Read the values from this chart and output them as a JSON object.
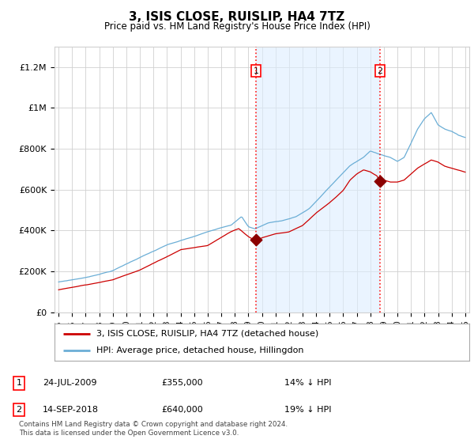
{
  "title": "3, ISIS CLOSE, RUISLIP, HA4 7TZ",
  "subtitle": "Price paid vs. HM Land Registry's House Price Index (HPI)",
  "ylim": [
    0,
    1300000
  ],
  "yticks": [
    0,
    200000,
    400000,
    600000,
    800000,
    1000000,
    1200000
  ],
  "ytick_labels": [
    "£0",
    "£200K",
    "£400K",
    "£600K",
    "£800K",
    "£1M",
    "£1.2M"
  ],
  "background_color": "#ffffff",
  "plot_bg_color": "#ffffff",
  "grid_color": "#d0d0d0",
  "line_color_hpi": "#6baed6",
  "line_color_price": "#cc0000",
  "marker_color": "#8b0000",
  "shade_color": "#ddeeff",
  "transaction1": {
    "date": 2009.56,
    "price": 355000,
    "label": "1"
  },
  "transaction2": {
    "date": 2018.71,
    "price": 640000,
    "label": "2"
  },
  "legend_entries": [
    "3, ISIS CLOSE, RUISLIP, HA4 7TZ (detached house)",
    "HPI: Average price, detached house, Hillingdon"
  ],
  "table_rows": [
    {
      "num": "1",
      "date": "24-JUL-2009",
      "price": "£355,000",
      "pct": "14% ↓ HPI"
    },
    {
      "num": "2",
      "date": "14-SEP-2018",
      "price": "£640,000",
      "pct": "19% ↓ HPI"
    }
  ],
  "footnote": "Contains HM Land Registry data © Crown copyright and database right 2024.\nThis data is licensed under the Open Government Licence v3.0.",
  "vline1_date": 2009.56,
  "vline2_date": 2018.71,
  "xlim_left": 1994.7,
  "xlim_right": 2025.3
}
